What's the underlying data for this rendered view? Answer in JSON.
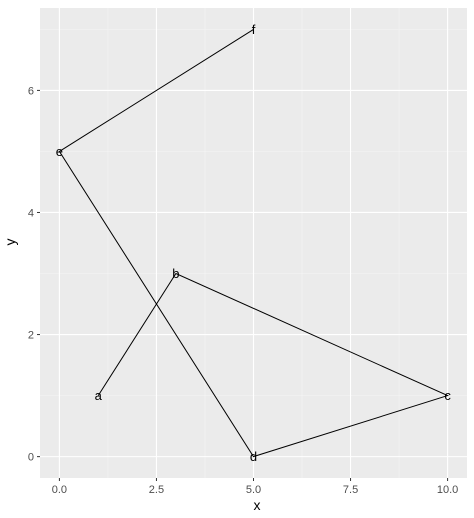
{
  "chart_data": {
    "type": "line",
    "title": "",
    "xlabel": "x",
    "ylabel": "y",
    "xlim": [
      -0.5,
      10.5
    ],
    "ylim": [
      -0.35,
      7.35
    ],
    "x_ticks": [
      0,
      2.5,
      5,
      7.5,
      10
    ],
    "x_tick_labels": [
      "0.0",
      "2.5",
      "5.0",
      "7.5",
      "10.0"
    ],
    "y_ticks": [
      0,
      2,
      4,
      6
    ],
    "y_tick_labels": [
      "0",
      "2",
      "4",
      "6"
    ],
    "grid": true,
    "legend": "none",
    "colors": {
      "panel": "#ebebeb",
      "grid_major": "#ffffff",
      "grid_minor": "#f4f4f4",
      "line": "#000000",
      "tick_text": "#4d4d4d",
      "tick_mark": "#333333"
    },
    "points": [
      {
        "label": "a",
        "x": 1,
        "y": 1
      },
      {
        "label": "b",
        "x": 3,
        "y": 3
      },
      {
        "label": "c",
        "x": 10,
        "y": 1
      },
      {
        "label": "d",
        "x": 5,
        "y": 0
      },
      {
        "label": "e",
        "x": 0,
        "y": 5
      },
      {
        "label": "f",
        "x": 5,
        "y": 7
      }
    ]
  }
}
